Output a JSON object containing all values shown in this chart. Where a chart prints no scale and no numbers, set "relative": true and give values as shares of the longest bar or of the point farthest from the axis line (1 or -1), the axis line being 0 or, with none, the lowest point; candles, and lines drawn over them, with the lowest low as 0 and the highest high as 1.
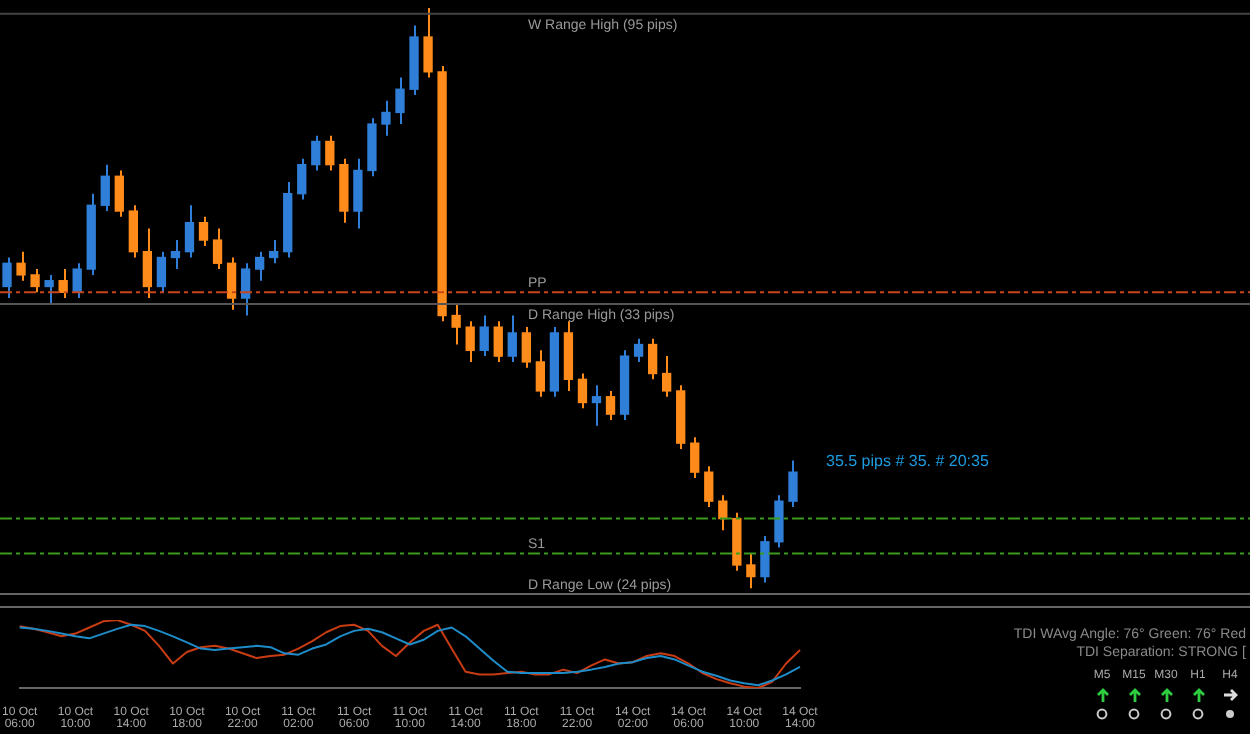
{
  "chart_data": [
    {
      "type": "candlestick",
      "relative": true,
      "legend": false,
      "categories": [
        null,
        null,
        null,
        null,
        null,
        null,
        null,
        null,
        null,
        null,
        null,
        null,
        null,
        null,
        null,
        null,
        null,
        null,
        null,
        null,
        null,
        null,
        null,
        null,
        null,
        null,
        null,
        null,
        null,
        null,
        null,
        null,
        null,
        null,
        null,
        null,
        null,
        null,
        null,
        null,
        null,
        null,
        null,
        null,
        null,
        null,
        null,
        null,
        null,
        null,
        null,
        null,
        null,
        null,
        null,
        null,
        null
      ],
      "ohlc": [
        [
          0.52,
          0.57,
          0.5,
          0.56
        ],
        [
          0.56,
          0.58,
          0.53,
          0.54
        ],
        [
          0.54,
          0.55,
          0.51,
          0.52
        ],
        [
          0.52,
          0.54,
          0.49,
          0.53
        ],
        [
          0.53,
          0.55,
          0.5,
          0.51
        ],
        [
          0.51,
          0.56,
          0.5,
          0.55
        ],
        [
          0.55,
          0.68,
          0.54,
          0.66
        ],
        [
          0.66,
          0.73,
          0.65,
          0.71
        ],
        [
          0.71,
          0.72,
          0.64,
          0.65
        ],
        [
          0.65,
          0.66,
          0.57,
          0.58
        ],
        [
          0.58,
          0.62,
          0.5,
          0.52
        ],
        [
          0.52,
          0.58,
          0.51,
          0.57
        ],
        [
          0.57,
          0.6,
          0.55,
          0.58
        ],
        [
          0.58,
          0.66,
          0.57,
          0.63
        ],
        [
          0.63,
          0.64,
          0.59,
          0.6
        ],
        [
          0.6,
          0.62,
          0.55,
          0.56
        ],
        [
          0.56,
          0.57,
          0.48,
          0.5
        ],
        [
          0.5,
          0.56,
          0.47,
          0.55
        ],
        [
          0.55,
          0.58,
          0.53,
          0.57
        ],
        [
          0.57,
          0.6,
          0.56,
          0.58
        ],
        [
          0.58,
          0.7,
          0.57,
          0.68
        ],
        [
          0.68,
          0.74,
          0.67,
          0.73
        ],
        [
          0.73,
          0.78,
          0.72,
          0.77
        ],
        [
          0.77,
          0.78,
          0.72,
          0.73
        ],
        [
          0.73,
          0.74,
          0.63,
          0.65
        ],
        [
          0.65,
          0.74,
          0.62,
          0.72
        ],
        [
          0.72,
          0.81,
          0.71,
          0.8
        ],
        [
          0.8,
          0.84,
          0.78,
          0.82
        ],
        [
          0.82,
          0.88,
          0.8,
          0.86
        ],
        [
          0.86,
          0.97,
          0.85,
          0.95
        ],
        [
          0.95,
          1,
          0.88,
          0.89
        ],
        [
          0.89,
          0.9,
          0.46,
          0.47
        ],
        [
          0.47,
          0.49,
          0.42,
          0.45
        ],
        [
          0.45,
          0.46,
          0.39,
          0.41
        ],
        [
          0.41,
          0.47,
          0.4,
          0.45
        ],
        [
          0.45,
          0.46,
          0.39,
          0.4
        ],
        [
          0.4,
          0.47,
          0.39,
          0.44
        ],
        [
          0.44,
          0.45,
          0.38,
          0.39
        ],
        [
          0.39,
          0.41,
          0.33,
          0.34
        ],
        [
          0.34,
          0.45,
          0.33,
          0.44
        ],
        [
          0.44,
          0.46,
          0.34,
          0.36
        ],
        [
          0.36,
          0.37,
          0.31,
          0.32
        ],
        [
          0.32,
          0.35,
          0.28,
          0.33
        ],
        [
          0.33,
          0.34,
          0.29,
          0.3
        ],
        [
          0.3,
          0.41,
          0.29,
          0.4
        ],
        [
          0.4,
          0.43,
          0.39,
          0.42
        ],
        [
          0.42,
          0.43,
          0.36,
          0.37
        ],
        [
          0.37,
          0.4,
          0.33,
          0.34
        ],
        [
          0.34,
          0.35,
          0.24,
          0.25
        ],
        [
          0.25,
          0.26,
          0.19,
          0.2
        ],
        [
          0.2,
          0.21,
          0.14,
          0.15
        ],
        [
          0.15,
          0.16,
          0.1,
          0.12
        ],
        [
          0.12,
          0.13,
          0.03,
          0.04
        ],
        [
          0.04,
          0.06,
          0,
          0.02
        ],
        [
          0.02,
          0.09,
          0.01,
          0.08
        ],
        [
          0.08,
          0.16,
          0.07,
          0.15
        ],
        [
          0.15,
          0.22,
          0.14,
          0.2
        ]
      ],
      "colors": [
        "#2f7fd8",
        "#ff8c1a",
        "#ff8c1a",
        "#2f7fd8",
        "#ff8c1a",
        "#2f7fd8",
        "#2f7fd8",
        "#2f7fd8",
        "#ff8c1a",
        "#ff8c1a",
        "#ff8c1a",
        "#2f7fd8",
        "#2f7fd8",
        "#2f7fd8",
        "#ff8c1a",
        "#ff8c1a",
        "#ff8c1a",
        "#2f7fd8",
        "#2f7fd8",
        "#2f7fd8",
        "#2f7fd8",
        "#2f7fd8",
        "#2f7fd8",
        "#ff8c1a",
        "#ff8c1a",
        "#2f7fd8",
        "#2f7fd8",
        "#2f7fd8",
        "#2f7fd8",
        "#2f7fd8",
        "#ff8c1a",
        "#ff8c1a",
        "#ff8c1a",
        "#ff8c1a",
        "#2f7fd8",
        "#ff8c1a",
        "#2f7fd8",
        "#ff8c1a",
        "#ff8c1a",
        "#2f7fd8",
        "#ff8c1a",
        "#ff8c1a",
        "#2f7fd8",
        "#ff8c1a",
        "#2f7fd8",
        "#2f7fd8",
        "#ff8c1a",
        "#ff8c1a",
        "#ff8c1a",
        "#ff8c1a",
        "#ff8c1a",
        "#ff8c1a",
        "#ff8c1a",
        "#ff8c1a",
        "#2f7fd8",
        "#2f7fd8",
        "#2f7fd8"
      ],
      "ref_lines": [
        {
          "axis": "y",
          "value": 0.99,
          "label": "W Range High (95 pips)",
          "color": "#444444",
          "line_style": "solid"
        },
        {
          "axis": "y",
          "value": 0.51,
          "label": "PP",
          "color": "#c8461e",
          "line_style": "dashed"
        },
        {
          "axis": "y",
          "value": 0.49,
          "label": "D Range High (33 pips)",
          "color": "#555555",
          "line_style": "solid"
        },
        {
          "axis": "y",
          "value": 0.12,
          "label": null,
          "color": "#3c9b1e",
          "line_style": "dashed"
        },
        {
          "axis": "y",
          "value": 0.06,
          "label": "S1",
          "color": "#3c9b1e",
          "line_style": "dashed"
        },
        {
          "axis": "y",
          "value": -0.01,
          "label": "D Range Low (24 pips)",
          "color": "#666666",
          "line_style": "solid"
        }
      ],
      "annotations": [
        "35.5 pips # 35. # 20:35"
      ]
    },
    {
      "type": "line",
      "relative": true,
      "tick_labels": "x",
      "legend": false,
      "marker": "none",
      "line_style": "solid",
      "categories": [
        "10 Oct 06:00",
        null,
        null,
        null,
        "10 Oct 10:00",
        null,
        null,
        null,
        "10 Oct 14:00",
        null,
        null,
        null,
        "10 Oct 18:00",
        null,
        null,
        null,
        "10 Oct 22:00",
        null,
        null,
        null,
        "11 Oct 02:00",
        null,
        null,
        null,
        "11 Oct 06:00",
        null,
        null,
        null,
        "11 Oct 10:00",
        null,
        null,
        null,
        "11 Oct 14:00",
        null,
        null,
        null,
        "11 Oct 18:00",
        null,
        null,
        null,
        "11 Oct 22:00",
        null,
        null,
        null,
        "14 Oct 02:00",
        null,
        null,
        null,
        "14 Oct 06:00",
        null,
        null,
        null,
        "14 Oct 10:00",
        null,
        null,
        null,
        "14 Oct 14:00"
      ],
      "series": [
        {
          "color": "#1e8cc8",
          "values": [
            0.89,
            0.87,
            0.84,
            0.8,
            0.76,
            0.73,
            0.8,
            0.87,
            0.93,
            0.91,
            0.84,
            0.76,
            0.67,
            0.58,
            0.56,
            0.58,
            0.6,
            0.62,
            0.6,
            0.51,
            0.49,
            0.58,
            0.64,
            0.76,
            0.84,
            0.87,
            0.82,
            0.73,
            0.64,
            0.71,
            0.84,
            0.89,
            0.76,
            0.58,
            0.4,
            0.24,
            0.22,
            0.22,
            0.22,
            0.22,
            0.24,
            0.27,
            0.31,
            0.36,
            0.38,
            0.44,
            0.47,
            0.42,
            0.33,
            0.24,
            0.18,
            0.11,
            0.07,
            0.04,
            0.11,
            0.2,
            0.31
          ]
        },
        {
          "color": "#c83c14",
          "values": [
            0.91,
            0.87,
            0.82,
            0.76,
            0.8,
            0.89,
            0.98,
            1,
            0.93,
            0.84,
            0.62,
            0.36,
            0.53,
            0.6,
            0.62,
            0.58,
            0.51,
            0.44,
            0.47,
            0.49,
            0.58,
            0.69,
            0.82,
            0.91,
            0.93,
            0.84,
            0.62,
            0.47,
            0.67,
            0.84,
            0.93,
            0.58,
            0.24,
            0.2,
            0.2,
            0.22,
            0.24,
            0.2,
            0.2,
            0.27,
            0.22,
            0.33,
            0.42,
            0.36,
            0.38,
            0.47,
            0.51,
            0.47,
            0.36,
            0.22,
            0.13,
            0.07,
            0.02,
            0,
            0.09,
            0.36,
            0.56
          ]
        }
      ],
      "annotations": [
        "TDI WAvg Angle: 76°  Green: 76°  Red",
        "TDI Separation: STRONG [",
        "M5",
        "M15",
        "M30",
        "H1",
        "H4"
      ]
    }
  ]
}
